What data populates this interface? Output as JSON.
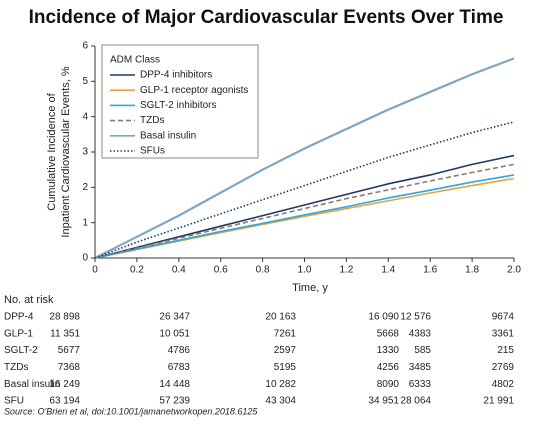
{
  "chart_data": {
    "type": "line",
    "title": "Incidence of Major Cardiovascular Events Over Time",
    "x_label": "Time, y",
    "y_label": [
      "Cumulative Incidence of",
      "Inpatient Cardiovascular Events, %"
    ],
    "legend_title": "ADM Class",
    "legend_position": "upper left",
    "x": [
      0,
      0.2,
      0.4,
      0.6,
      0.8,
      1.0,
      1.2,
      1.4,
      1.6,
      1.8,
      2.0
    ],
    "series": [
      {
        "name": "DPP-4 inhibitors",
        "color": "#1f3a5c",
        "style": "solid",
        "values": [
          0,
          0.3,
          0.6,
          0.9,
          1.2,
          1.5,
          1.8,
          2.1,
          2.35,
          2.65,
          2.9
        ]
      },
      {
        "name": "GLP-1 receptor agonists",
        "color": "#e8a23c",
        "style": "solid",
        "values": [
          0,
          0.24,
          0.48,
          0.72,
          0.95,
          1.18,
          1.4,
          1.62,
          1.84,
          2.05,
          2.25
        ]
      },
      {
        "name": "SGLT-2 inhibitors",
        "color": "#27a9e1",
        "style": "solid",
        "values": [
          0,
          0.25,
          0.5,
          0.75,
          0.98,
          1.22,
          1.45,
          1.7,
          1.92,
          2.15,
          2.35
        ]
      },
      {
        "name": "TZDs",
        "color": "#8a7b6c",
        "style": "dashed",
        "values": [
          0,
          0.28,
          0.56,
          0.84,
          1.12,
          1.4,
          1.68,
          1.93,
          2.18,
          2.42,
          2.65
        ]
      },
      {
        "name": "Basal insulin",
        "color": "#7fa6c2",
        "style": "solid",
        "values": [
          0,
          0.6,
          1.2,
          1.85,
          2.5,
          3.1,
          3.65,
          4.2,
          4.7,
          5.2,
          5.65
        ]
      },
      {
        "name": "SFUs",
        "color": "#1f3a5c",
        "style": "dotted",
        "values": [
          0,
          0.45,
          0.85,
          1.25,
          1.65,
          2.05,
          2.45,
          2.85,
          3.2,
          3.55,
          3.85
        ]
      }
    ],
    "xlim": [
      0,
      2.0
    ],
    "xticks": [
      0,
      0.2,
      0.4,
      0.6,
      0.8,
      {
        "value": 1.0,
        "label": "1.0"
      },
      1.2,
      1.4,
      1.6,
      1.8,
      {
        "value": 2.0,
        "label": "2.0"
      }
    ],
    "ylim": [
      0,
      6
    ],
    "yticks": [
      0,
      1,
      2,
      3,
      4,
      5,
      6
    ],
    "grid": false,
    "risk_table": {
      "title": "No. at risk",
      "rows": [
        {
          "label": "DPP-4",
          "counts": [
            "28 898",
            "26 347",
            "20 163",
            "16 090",
            "12 576",
            "9674"
          ]
        },
        {
          "label": "GLP-1",
          "counts": [
            "11 351",
            "10 051",
            "7261",
            "5668",
            "4383",
            "3361"
          ]
        },
        {
          "label": "SGLT-2",
          "counts": [
            "5677",
            "4786",
            "2597",
            "1330",
            "585",
            "215"
          ]
        },
        {
          "label": "TZDs",
          "counts": [
            "7368",
            "6783",
            "5195",
            "4256",
            "3485",
            "2769"
          ]
        },
        {
          "label": "Basal insulin",
          "counts": [
            "16 249",
            "14 448",
            "10 282",
            "8090",
            "6333",
            "4802"
          ]
        },
        {
          "label": "SFU",
          "counts": [
            "63 194",
            "57 239",
            "43 304",
            "34 951",
            "28 064",
            "21 991"
          ]
        }
      ]
    },
    "source": "Source: O'Brien et al, doi:10.1001/jamanetworkopen.2018.6125"
  }
}
